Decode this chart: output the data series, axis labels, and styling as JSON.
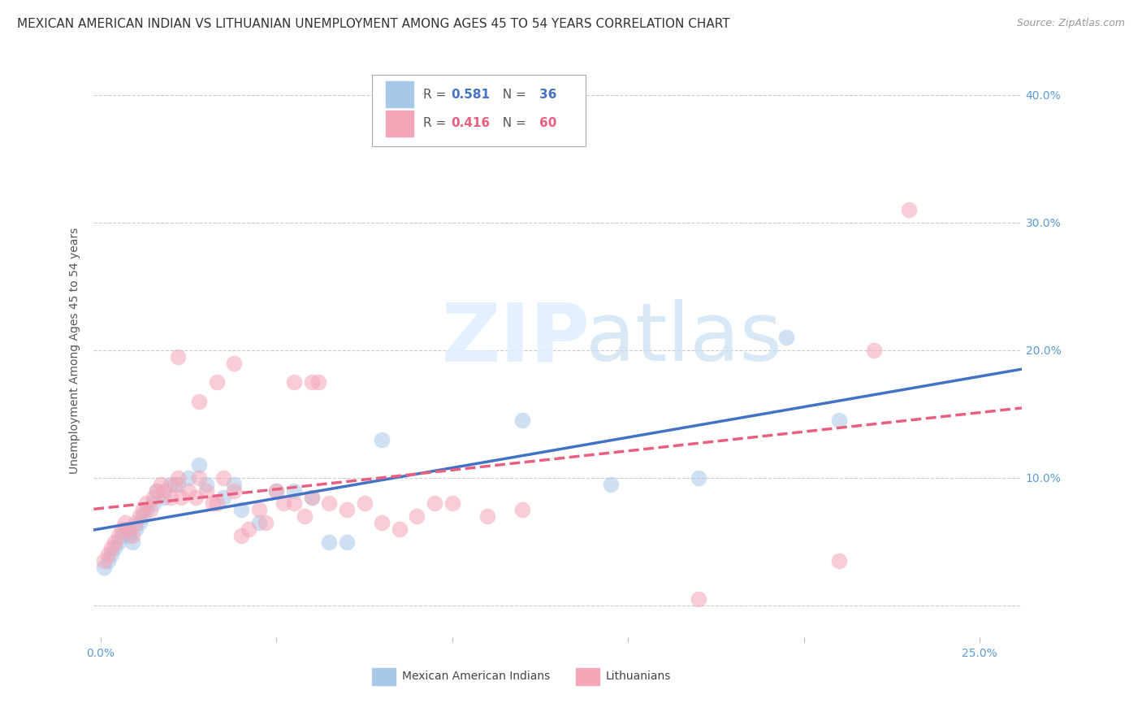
{
  "title": "MEXICAN AMERICAN INDIAN VS LITHUANIAN UNEMPLOYMENT AMONG AGES 45 TO 54 YEARS CORRELATION CHART",
  "source": "Source: ZipAtlas.com",
  "xlim": [
    -0.002,
    0.262
  ],
  "ylim": [
    -0.025,
    0.425
  ],
  "watermark_line1": "ZIP",
  "watermark_line2": "atlas",
  "series": [
    {
      "name": "Mexican American Indians",
      "R": 0.581,
      "N": 36,
      "dot_color": "#a8c8e8",
      "line_color": "#4472c4",
      "line_style": "-",
      "x": [
        0.001,
        0.002,
        0.003,
        0.004,
        0.005,
        0.006,
        0.007,
        0.008,
        0.009,
        0.01,
        0.011,
        0.012,
        0.013,
        0.015,
        0.016,
        0.018,
        0.02,
        0.022,
        0.025,
        0.028,
        0.03,
        0.035,
        0.038,
        0.04,
        0.045,
        0.05,
        0.055,
        0.06,
        0.065,
        0.07,
        0.08,
        0.12,
        0.145,
        0.17,
        0.195,
        0.21
      ],
      "y": [
        0.03,
        0.035,
        0.04,
        0.045,
        0.05,
        0.055,
        0.06,
        0.055,
        0.05,
        0.06,
        0.065,
        0.07,
        0.075,
        0.08,
        0.09,
        0.085,
        0.095,
        0.095,
        0.1,
        0.11,
        0.095,
        0.085,
        0.095,
        0.075,
        0.065,
        0.09,
        0.09,
        0.085,
        0.05,
        0.05,
        0.13,
        0.145,
        0.095,
        0.1,
        0.21,
        0.145
      ]
    },
    {
      "name": "Lithuanians",
      "R": 0.416,
      "N": 60,
      "dot_color": "#f4a5b8",
      "line_color": "#e86080",
      "line_style": "--",
      "x": [
        0.001,
        0.002,
        0.003,
        0.004,
        0.005,
        0.006,
        0.007,
        0.008,
        0.009,
        0.01,
        0.011,
        0.012,
        0.013,
        0.014,
        0.015,
        0.016,
        0.017,
        0.018,
        0.02,
        0.021,
        0.022,
        0.023,
        0.025,
        0.027,
        0.028,
        0.03,
        0.032,
        0.033,
        0.035,
        0.038,
        0.04,
        0.042,
        0.045,
        0.047,
        0.05,
        0.052,
        0.055,
        0.058,
        0.06,
        0.062,
        0.065,
        0.07,
        0.075,
        0.08,
        0.085,
        0.09,
        0.095,
        0.1,
        0.11,
        0.12,
        0.022,
        0.028,
        0.033,
        0.038,
        0.055,
        0.06,
        0.17,
        0.21,
        0.22,
        0.23
      ],
      "y": [
        0.035,
        0.04,
        0.045,
        0.05,
        0.055,
        0.06,
        0.065,
        0.06,
        0.055,
        0.065,
        0.07,
        0.075,
        0.08,
        0.075,
        0.085,
        0.09,
        0.095,
        0.09,
        0.085,
        0.095,
        0.1,
        0.085,
        0.09,
        0.085,
        0.1,
        0.09,
        0.08,
        0.08,
        0.1,
        0.09,
        0.055,
        0.06,
        0.075,
        0.065,
        0.09,
        0.08,
        0.08,
        0.07,
        0.085,
        0.175,
        0.08,
        0.075,
        0.08,
        0.065,
        0.06,
        0.07,
        0.08,
        0.08,
        0.07,
        0.075,
        0.195,
        0.16,
        0.175,
        0.19,
        0.175,
        0.175,
        0.005,
        0.035,
        0.2,
        0.31
      ]
    }
  ],
  "axis_color": "#5b9bd5",
  "background_color": "#ffffff",
  "grid_color": "#cccccc",
  "title_fontsize": 11,
  "axis_label_fontsize": 10,
  "tick_fontsize": 10,
  "source_fontsize": 9
}
